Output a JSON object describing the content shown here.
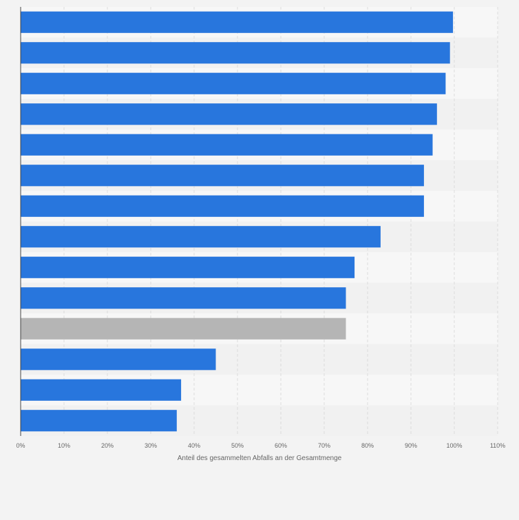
{
  "chart_data": {
    "type": "bar",
    "orientation": "horizontal",
    "title": "",
    "xlabel": "Anteil des gesammelten Abfalls an der Gesamtmenge",
    "ylabel": "",
    "xlim": [
      0,
      110
    ],
    "tick_labels": [
      "0%",
      "10%",
      "20%",
      "30%",
      "40%",
      "50%",
      "60%",
      "70%",
      "80%",
      "90%",
      "100%",
      "110%"
    ],
    "grid": true,
    "legend": "none",
    "category_labels_visible": false,
    "values": [
      99.7,
      99,
      98,
      96,
      95,
      93,
      93,
      83,
      77,
      75,
      75,
      45,
      37,
      36
    ],
    "bar_colors": [
      "#2876dd",
      "#2876dd",
      "#2876dd",
      "#2876dd",
      "#2876dd",
      "#2876dd",
      "#2876dd",
      "#2876dd",
      "#2876dd",
      "#2876dd",
      "#b5b5b5",
      "#2876dd",
      "#2876dd",
      "#2876dd"
    ]
  },
  "colors": {
    "background": "#f3f3f3",
    "plot_band_light": "#f7f7f7",
    "plot_band_dark": "#f1f1f1",
    "grid": "#dcdcdc",
    "axis": "#444444",
    "tick_text": "#666666",
    "primary_bar": "#2876dd",
    "highlight_bar": "#b5b5b5"
  }
}
